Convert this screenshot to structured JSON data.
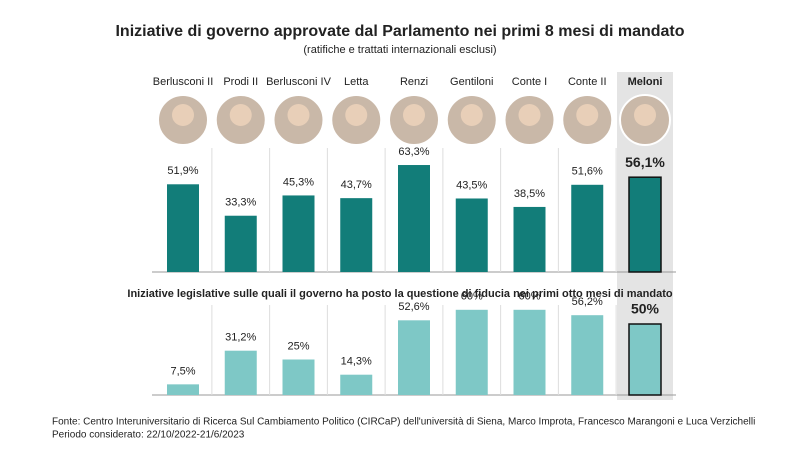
{
  "chart_data": [
    {
      "type": "bar",
      "title": "Iniziative di governo approvate dal Parlamento nei primi 8 mesi di mandato",
      "subtitle": "(ratifiche e trattati internazionali esclusi)",
      "categories": [
        "Berlusconi II",
        "Prodi II",
        "Berlusconi IV",
        "Letta",
        "Renzi",
        "Gentiloni",
        "Conte I",
        "Conte II",
        "Meloni"
      ],
      "values": [
        51.9,
        33.3,
        45.3,
        43.7,
        63.3,
        43.5,
        38.5,
        51.6,
        56.1
      ],
      "value_labels": [
        "51,9%",
        "33,3%",
        "45,3%",
        "43,7%",
        "63,3%",
        "43,5%",
        "38,5%",
        "51,6%",
        "56,1%"
      ],
      "color": "#127d79",
      "highlight": 8
    },
    {
      "type": "bar",
      "title": "Iniziative legislative sulle quali il governo ha posto la questione di fiducia nei primi otto  mesi di mandato",
      "values": [
        7.5,
        31.2,
        25,
        14.3,
        52.6,
        60,
        60,
        56.2,
        50
      ],
      "value_labels": [
        "7,5%",
        "31,2%",
        "25%",
        "14,3%",
        "52,6%",
        "60%",
        "60%",
        "56,2%",
        "50%"
      ],
      "color": "#7ec8c6",
      "highlight": 8
    }
  ],
  "footer": {
    "source": "Fonte: Centro Interuniversitario di Ricerca Sul Cambiamento Politico (CIRCaP) dell'università di Siena, Marco Improta, Francesco Marangoni e Luca Verzichelli",
    "period": "Periodo considerato: 22/10/2022-21/6/2023"
  }
}
